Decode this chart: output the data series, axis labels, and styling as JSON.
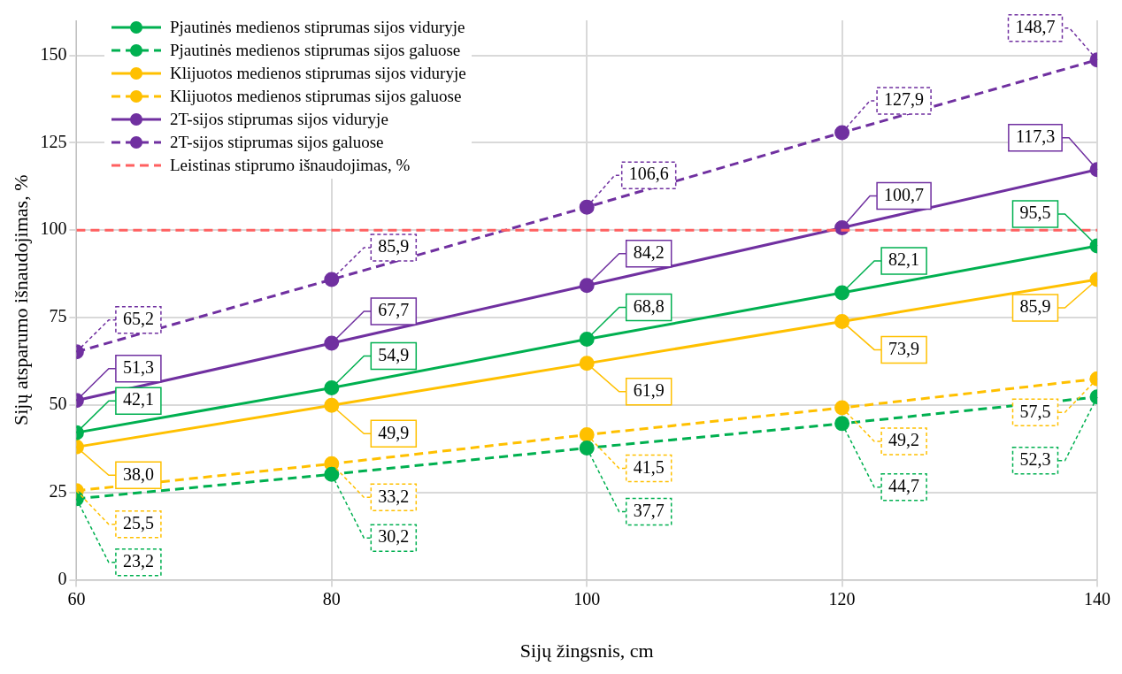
{
  "chart_data": {
    "type": "line",
    "xlabel": "Sijų žingsnis, cm",
    "ylabel": "Sijų atsparumo išnaudojimas, %",
    "x": [
      60,
      80,
      100,
      120,
      140
    ],
    "xlim": [
      60,
      140
    ],
    "xticks": [
      60,
      80,
      100,
      120,
      140
    ],
    "ylim": [
      0,
      160
    ],
    "yticks": [
      0,
      25,
      50,
      75,
      100,
      125,
      150
    ],
    "grid": true,
    "legend": "top left",
    "marker": "circle",
    "series": [
      {
        "name": "Pjautinės medienos stiprumas sijos viduryje",
        "color": "#00b050",
        "line_style": "solid",
        "values": [
          42.1,
          54.9,
          68.8,
          82.1,
          95.5
        ],
        "value_labels": [
          "42,1",
          "54,9",
          "68,8",
          "82,1",
          "95,5"
        ]
      },
      {
        "name": "Pjautinės medienos stiprumas sijos galuose",
        "color": "#00b050",
        "line_style": "dashed",
        "values": [
          23.2,
          30.2,
          37.7,
          44.7,
          52.3
        ],
        "value_labels": [
          "23,2",
          "30,2",
          "37,7",
          "44,7",
          "52,3"
        ]
      },
      {
        "name": "Klijuotos medienos stiprumas sijos viduryje",
        "color": "#ffc000",
        "line_style": "solid",
        "values": [
          38.0,
          49.9,
          61.9,
          73.9,
          85.9
        ],
        "value_labels": [
          "38,0",
          "49,9",
          "61,9",
          "73,9",
          "85,9"
        ]
      },
      {
        "name": "Klijuotos medienos stiprumas sijos galuose",
        "color": "#ffc000",
        "line_style": "dashed",
        "values": [
          25.5,
          33.2,
          41.5,
          49.2,
          57.5
        ],
        "value_labels": [
          "25,5",
          "33,2",
          "41,5",
          "49,2",
          "57,5"
        ]
      },
      {
        "name": "2T-sijos stiprumas sijos viduryje",
        "color": "#7030a0",
        "line_style": "solid",
        "values": [
          51.3,
          67.7,
          84.2,
          100.7,
          117.3
        ],
        "value_labels": [
          "51,3",
          "67,7",
          "84,2",
          "100,7",
          "117,3"
        ]
      },
      {
        "name": "2T-sijos stiprumas sijos galuose",
        "color": "#7030a0",
        "line_style": "dashed",
        "values": [
          65.2,
          85.9,
          106.6,
          127.9,
          148.7
        ],
        "value_labels": [
          "65,2",
          "85,9",
          "106,6",
          "127,9",
          "148,7"
        ]
      }
    ],
    "ref_lines": [
      {
        "axis": "y",
        "value": 100,
        "label": "Leistinas stiprumo išnaudojimas, %",
        "color": "#ff6060",
        "line_style": "dashed"
      }
    ]
  }
}
